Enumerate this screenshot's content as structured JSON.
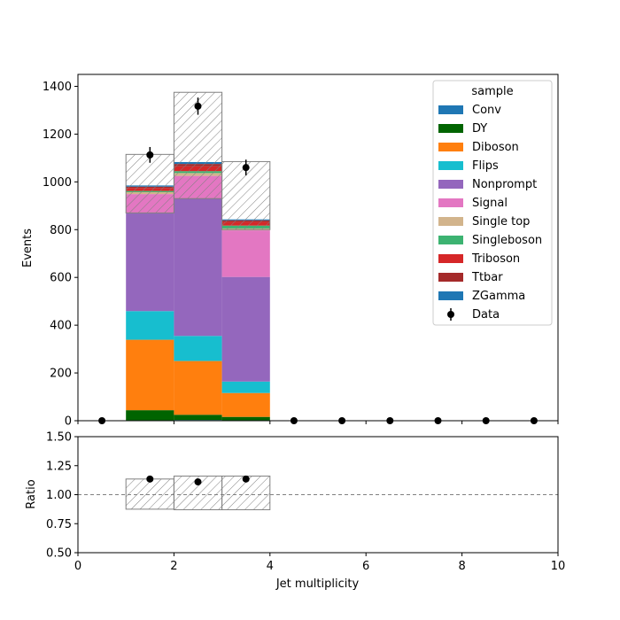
{
  "chart_data": {
    "type": "bar",
    "subtype": "stacked-histogram-with-ratio",
    "xlabel": "Jet multiplicity",
    "ylabel_main": "Events",
    "ylabel_ratio": "Ratio",
    "xlim": [
      0,
      10
    ],
    "ylim_main": [
      0,
      1450
    ],
    "ylim_ratio": [
      0.5,
      1.5
    ],
    "x_ticks": [
      0,
      2,
      4,
      6,
      8,
      10
    ],
    "y_ticks_main": [
      0,
      200,
      400,
      600,
      800,
      1000,
      1200,
      1400
    ],
    "y_ticks_ratio": [
      0.5,
      0.75,
      1.0,
      1.25,
      1.5
    ],
    "y_tick_labels_ratio": [
      "0.50",
      "0.75",
      "1.00",
      "1.25",
      "1.50"
    ],
    "ratio_reference_line": 1.0,
    "bin_edges": [
      0,
      1,
      2,
      3,
      4,
      5,
      6,
      7,
      8,
      9,
      10
    ],
    "legend": {
      "title": "sample",
      "placement": "top-right"
    },
    "series": [
      {
        "name": "Conv",
        "color": "#1f77b4",
        "values": [
          0,
          2,
          3,
          2,
          0,
          0,
          0,
          0,
          0,
          0
        ]
      },
      {
        "name": "DY",
        "color": "#006400",
        "values": [
          0,
          42,
          22,
          14,
          0,
          0,
          0,
          0,
          0,
          0
        ]
      },
      {
        "name": "Diboson",
        "color": "#ff7f0e",
        "values": [
          0,
          295,
          225,
          100,
          0,
          0,
          0,
          0,
          0,
          0
        ]
      },
      {
        "name": "Flips",
        "color": "#17becf",
        "values": [
          0,
          120,
          105,
          48,
          0,
          0,
          0,
          0,
          0,
          0
        ]
      },
      {
        "name": "Nonprompt",
        "color": "#9467bd",
        "values": [
          0,
          410,
          575,
          438,
          0,
          0,
          0,
          0,
          0,
          0
        ]
      },
      {
        "name": "Signal",
        "color": "#e377c2",
        "values": [
          0,
          80,
          95,
          195,
          0,
          0,
          0,
          0,
          0,
          0
        ]
      },
      {
        "name": "Single top",
        "color": "#d2b48c",
        "values": [
          0,
          8,
          12,
          8,
          0,
          0,
          0,
          0,
          0,
          0
        ]
      },
      {
        "name": "Singleboson",
        "color": "#3cb371",
        "values": [
          0,
          5,
          8,
          12,
          0,
          0,
          0,
          0,
          0,
          0
        ]
      },
      {
        "name": "Triboson",
        "color": "#d62728",
        "values": [
          0,
          12,
          20,
          15,
          0,
          0,
          0,
          0,
          0,
          0
        ]
      },
      {
        "name": "Ttbar",
        "color": "#a52a2a",
        "values": [
          0,
          6,
          10,
          7,
          0,
          0,
          0,
          0,
          0,
          0
        ]
      },
      {
        "name": "ZGamma",
        "color": "#1f77b4",
        "values": [
          0,
          5,
          8,
          4,
          0,
          0,
          0,
          0,
          0,
          0
        ]
      }
    ],
    "mc_uncertainty": {
      "hatched": true,
      "up": [
        0,
        1115,
        1375,
        1085,
        0,
        0,
        0,
        0,
        0,
        0
      ],
      "down": [
        0,
        870,
        930,
        800,
        0,
        0,
        0,
        0,
        0,
        0
      ]
    },
    "data": {
      "name": "Data",
      "color": "#000000",
      "x": [
        0.5,
        1.5,
        2.5,
        3.5,
        4.5,
        5.5,
        6.5,
        7.5,
        8.5,
        9.5
      ],
      "values": [
        0,
        1113,
        1317,
        1060,
        0,
        0,
        0,
        0,
        0,
        0
      ],
      "errors": [
        0,
        33,
        36,
        33,
        0,
        0,
        0,
        0,
        0,
        0
      ]
    },
    "ratio": {
      "x": [
        1.5,
        2.5,
        3.5
      ],
      "values": [
        1.135,
        1.11,
        1.135
      ],
      "band_down": [
        0.875,
        0.87,
        0.87
      ],
      "band_up": [
        1.135,
        1.16,
        1.16
      ]
    }
  }
}
